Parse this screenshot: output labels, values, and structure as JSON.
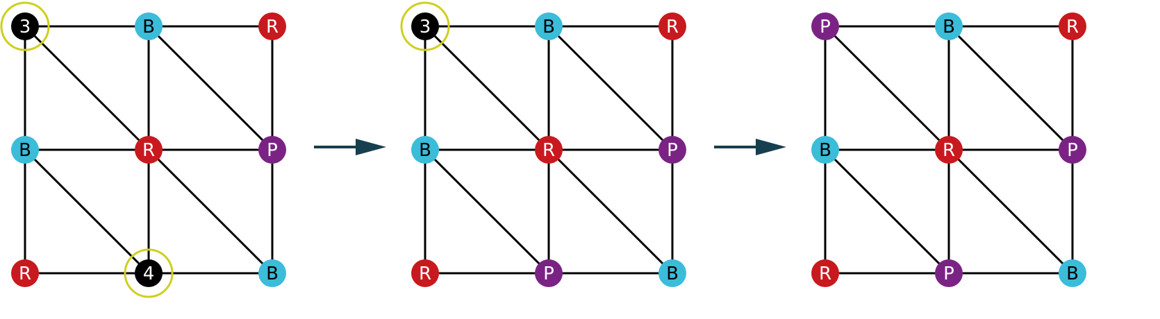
{
  "colors": {
    "R": "#c8191f",
    "B": "#3bbcd9",
    "P": "#7b2384",
    "N": "#000000",
    "edge": "#000000",
    "highlight": "#cfcf20",
    "arrow": "#173f4f",
    "label_on_light": "#000000",
    "label_on_dark": "#ffffff"
  },
  "graph": {
    "nodes": [
      "r0c0",
      "r0c1",
      "r0c2",
      "r1c0",
      "r1c1",
      "r1c2",
      "r2c0",
      "r2c1",
      "r2c2"
    ],
    "edges": [
      [
        "r0c0",
        "r0c1"
      ],
      [
        "r0c1",
        "r0c2"
      ],
      [
        "r1c0",
        "r1c1"
      ],
      [
        "r1c1",
        "r1c2"
      ],
      [
        "r2c0",
        "r2c1"
      ],
      [
        "r2c1",
        "r2c2"
      ],
      [
        "r0c0",
        "r1c0"
      ],
      [
        "r1c0",
        "r2c0"
      ],
      [
        "r0c1",
        "r1c1"
      ],
      [
        "r1c1",
        "r2c1"
      ],
      [
        "r0c2",
        "r1c2"
      ],
      [
        "r1c2",
        "r2c2"
      ],
      [
        "r0c0",
        "r1c1"
      ],
      [
        "r1c1",
        "r2c2"
      ],
      [
        "r0c1",
        "r1c2"
      ],
      [
        "r1c0",
        "r2c1"
      ]
    ]
  },
  "panels": [
    {
      "labels": {
        "r0c0": "3",
        "r0c1": "B",
        "r0c2": "R",
        "r1c0": "B",
        "r1c1": "R",
        "r1c2": "P",
        "r2c0": "R",
        "r2c1": "4",
        "r2c2": "B"
      },
      "fills": {
        "r0c0": "N",
        "r0c1": "B",
        "r0c2": "R",
        "r1c0": "B",
        "r1c1": "R",
        "r1c2": "P",
        "r2c0": "R",
        "r2c1": "N",
        "r2c2": "B"
      },
      "highlighted": [
        "r0c0",
        "r2c1"
      ]
    },
    {
      "labels": {
        "r0c0": "3",
        "r0c1": "B",
        "r0c2": "R",
        "r1c0": "B",
        "r1c1": "R",
        "r1c2": "P",
        "r2c0": "R",
        "r2c1": "P",
        "r2c2": "B"
      },
      "fills": {
        "r0c0": "N",
        "r0c1": "B",
        "r0c2": "R",
        "r1c0": "B",
        "r1c1": "R",
        "r1c2": "P",
        "r2c0": "R",
        "r2c1": "P",
        "r2c2": "B"
      },
      "highlighted": [
        "r0c0"
      ]
    },
    {
      "labels": {
        "r0c0": "P",
        "r0c1": "B",
        "r0c2": "R",
        "r1c0": "B",
        "r1c1": "R",
        "r1c2": "P",
        "r2c0": "R",
        "r2c1": "P",
        "r2c2": "B"
      },
      "fills": {
        "r0c0": "P",
        "r0c1": "B",
        "r0c2": "R",
        "r1c0": "B",
        "r1c1": "R",
        "r1c2": "P",
        "r2c0": "R",
        "r2c1": "P",
        "r2c2": "B"
      },
      "highlighted": []
    }
  ],
  "arrows": [
    {
      "from_panel": 0,
      "to_panel": 1
    },
    {
      "from_panel": 1,
      "to_panel": 2
    }
  ]
}
